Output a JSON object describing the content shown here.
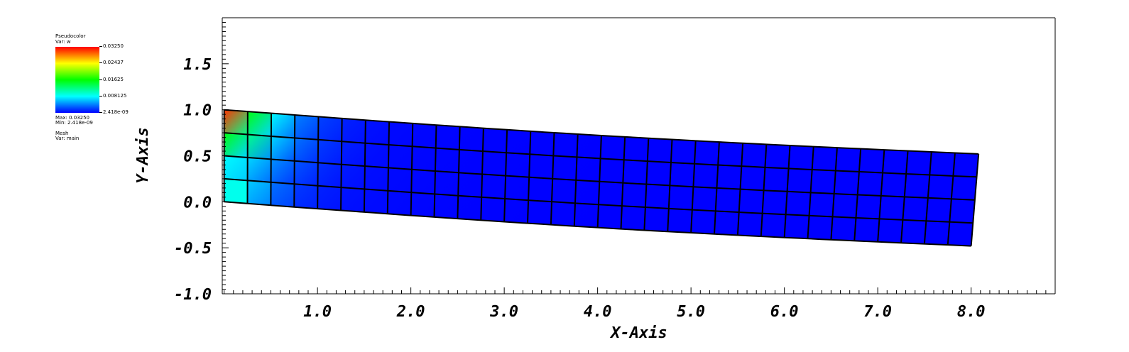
{
  "legend": {
    "plot_type": "Pseudocolor",
    "var_label": "Var: w",
    "colorbar_labels": [
      "0.03250",
      "0.02437",
      "0.01625",
      "0.008125",
      "2.418e-09"
    ],
    "max_label": "Max: 0.03250",
    "min_label": "Min: 2.418e-09",
    "mesh_type": "Mesh",
    "mesh_var": "Var: main",
    "colors": [
      "#ff0000",
      "#ffff00",
      "#00ff00",
      "#00ffff",
      "#0000ff"
    ]
  },
  "chart_data": {
    "type": "heatmap",
    "title": "",
    "xlabel": "X-Axis",
    "ylabel": "Y-Axis",
    "xlim": [
      -0.02,
      8.9
    ],
    "ylim": [
      -1.0,
      2.0
    ],
    "xticks": [
      "1.0",
      "2.0",
      "3.0",
      "4.0",
      "5.0",
      "6.0",
      "7.0",
      "8.0"
    ],
    "yticks": [
      "-1.0",
      "-0.5",
      "0.0",
      "0.5",
      "1.0",
      "1.5"
    ],
    "mesh": {
      "cols": 32,
      "rows": 4,
      "corners": {
        "bottom_left": [
          0.0,
          0.0
        ],
        "top_left": [
          0.0,
          1.0
        ],
        "bottom_right": [
          8.0,
          -0.48
        ],
        "top_right": [
          8.08,
          0.52
        ]
      },
      "colorbar_range": [
        2.418e-09,
        0.0325
      ]
    },
    "grid": false,
    "legend_position": "top-left"
  }
}
